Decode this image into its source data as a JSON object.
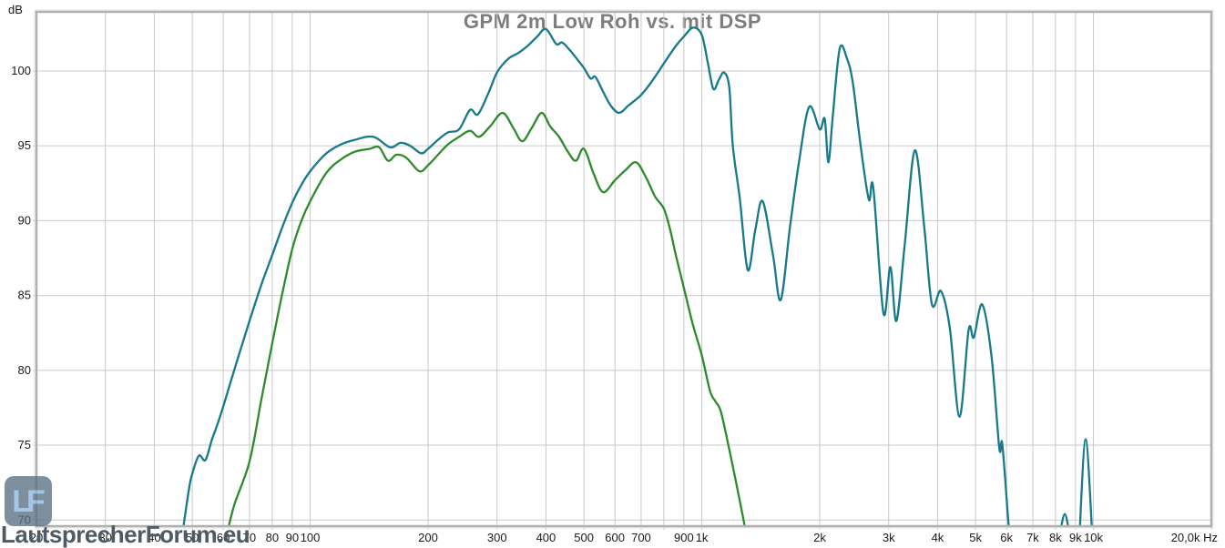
{
  "title": "GPM 2m Low Roh vs. mit DSP",
  "y_axis": {
    "unit": "dB",
    "tick_values": [
      100,
      95,
      90,
      85,
      80,
      75,
      70
    ],
    "min": 69.59,
    "max": 103.95
  },
  "x_axis": {
    "unit": "Hz",
    "scale": "log",
    "min": 20,
    "max": 20000,
    "gridline_freqs": [
      20,
      30,
      40,
      50,
      60,
      70,
      80,
      90,
      100,
      200,
      300,
      400,
      500,
      600,
      700,
      800,
      900,
      1000,
      2000,
      3000,
      4000,
      5000,
      6000,
      7000,
      8000,
      9000,
      10000,
      20000
    ],
    "ticks": [
      {
        "f": 20,
        "label": "20"
      },
      {
        "f": 30,
        "label": "30"
      },
      {
        "f": 40,
        "label": "40"
      },
      {
        "f": 50,
        "label": "50"
      },
      {
        "f": 60,
        "label": "60"
      },
      {
        "f": 70,
        "label": "70"
      },
      {
        "f": 80,
        "label": "80"
      },
      {
        "f": 90,
        "label": "90"
      },
      {
        "f": 100,
        "label": "100"
      },
      {
        "f": 200,
        "label": "200"
      },
      {
        "f": 300,
        "label": "300"
      },
      {
        "f": 400,
        "label": "400"
      },
      {
        "f": 500,
        "label": "500"
      },
      {
        "f": 600,
        "label": "600"
      },
      {
        "f": 700,
        "label": "700"
      },
      {
        "f": 900,
        "label": "900"
      },
      {
        "f": 1000,
        "label": "1k"
      },
      {
        "f": 2000,
        "label": "2k"
      },
      {
        "f": 3000,
        "label": "3k"
      },
      {
        "f": 4000,
        "label": "4k"
      },
      {
        "f": 5000,
        "label": "5k"
      },
      {
        "f": 6000,
        "label": "6k"
      },
      {
        "f": 7000,
        "label": "7k"
      },
      {
        "f": 8000,
        "label": "8k"
      },
      {
        "f": 9000,
        "label": "9k"
      },
      {
        "f": 10000,
        "label": "10k"
      },
      {
        "f": 20000,
        "label": "20,0k Hz"
      }
    ]
  },
  "watermark": {
    "text": "LautsprecherForum.eu",
    "logo_text": "LF"
  },
  "colors": {
    "dsp_curve": "#17798a",
    "raw_curve": "#2e8b2b",
    "grid": "#c9c9c9",
    "frame": "#b0b0b0",
    "title": "#7d7d7d",
    "tick_text": "#1a1a1a",
    "watermark_text": "#4f5a64",
    "logo_bg": "#5b7186",
    "logo_letters": "#8cb8e2"
  },
  "chart_data": {
    "type": "line",
    "title": "GPM 2m Low Roh vs. mit DSP",
    "x_scale": "log",
    "x_unit": "Hz",
    "y_unit": "dB",
    "xlim": [
      20,
      20000
    ],
    "ylim": [
      69.59,
      103.95
    ],
    "grid": true,
    "legend": "none",
    "series": [
      {
        "name": "mit DSP",
        "color": "#17798a",
        "segments": [
          [
            [
              47,
              68.8
            ],
            [
              49,
              72.0
            ],
            [
              50,
              73.1
            ],
            [
              52,
              74.3
            ],
            [
              54,
              74.0
            ],
            [
              56,
              75.3
            ],
            [
              58,
              76.4
            ],
            [
              60,
              77.6
            ],
            [
              65,
              80.6
            ],
            [
              70,
              83.3
            ],
            [
              75,
              85.7
            ],
            [
              80,
              87.7
            ],
            [
              85,
              89.6
            ],
            [
              90,
              91.2
            ],
            [
              95,
              92.4
            ],
            [
              100,
              93.3
            ],
            [
              110,
              94.5
            ],
            [
              120,
              95.1
            ],
            [
              130,
              95.4
            ],
            [
              145,
              95.6
            ],
            [
              160,
              94.9
            ],
            [
              170,
              95.2
            ],
            [
              180,
              95.0
            ],
            [
              192,
              94.5
            ],
            [
              200,
              94.8
            ],
            [
              212,
              95.4
            ],
            [
              225,
              95.9
            ],
            [
              240,
              96.1
            ],
            [
              256,
              97.4
            ],
            [
              268,
              97.1
            ],
            [
              285,
              98.5
            ],
            [
              300,
              99.9
            ],
            [
              320,
              100.8
            ],
            [
              340,
              101.2
            ],
            [
              360,
              101.7
            ],
            [
              380,
              102.3
            ],
            [
              400,
              102.8
            ],
            [
              425,
              101.8
            ],
            [
              440,
              101.9
            ],
            [
              460,
              101.4
            ],
            [
              480,
              100.8
            ],
            [
              500,
              100.2
            ],
            [
              520,
              99.5
            ],
            [
              535,
              99.6
            ],
            [
              560,
              98.6
            ],
            [
              585,
              97.7
            ],
            [
              615,
              97.2
            ],
            [
              650,
              97.7
            ],
            [
              700,
              98.4
            ],
            [
              750,
              99.4
            ],
            [
              800,
              100.5
            ],
            [
              860,
              101.7
            ],
            [
              900,
              102.3
            ],
            [
              950,
              102.9
            ],
            [
              1000,
              102.4
            ],
            [
              1035,
              100.6
            ],
            [
              1070,
              98.8
            ],
            [
              1105,
              99.4
            ],
            [
              1140,
              99.9
            ],
            [
              1175,
              98.9
            ],
            [
              1200,
              95.0
            ],
            [
              1250,
              91.5
            ],
            [
              1310,
              86.7
            ],
            [
              1370,
              89.4
            ],
            [
              1430,
              91.3
            ],
            [
              1520,
              87.7
            ],
            [
              1590,
              84.7
            ],
            [
              1680,
              89.6
            ],
            [
              1770,
              93.9
            ],
            [
              1880,
              97.6
            ],
            [
              2000,
              96.1
            ],
            [
              2060,
              96.8
            ],
            [
              2105,
              93.9
            ],
            [
              2160,
              97.0
            ],
            [
              2250,
              101.5
            ],
            [
              2350,
              100.8
            ],
            [
              2430,
              99.2
            ],
            [
              2550,
              94.8
            ],
            [
              2670,
              91.4
            ],
            [
              2740,
              92.2
            ],
            [
              2910,
              83.8
            ],
            [
              3030,
              86.9
            ],
            [
              3140,
              83.3
            ],
            [
              3300,
              88.5
            ],
            [
              3500,
              94.7
            ],
            [
              3700,
              89.5
            ],
            [
              3870,
              84.4
            ],
            [
              4080,
              85.3
            ],
            [
              4300,
              82.8
            ],
            [
              4550,
              76.9
            ],
            [
              4800,
              82.7
            ],
            [
              4950,
              82.2
            ],
            [
              5200,
              84.4
            ],
            [
              5500,
              80.8
            ],
            [
              5750,
              74.8
            ],
            [
              5850,
              75.1
            ],
            [
              6050,
              70.2
            ],
            [
              6130,
              68.5
            ]
          ],
          [
            [
              8200,
              69.0
            ],
            [
              8450,
              70.4
            ],
            [
              8700,
              69.0
            ]
          ],
          [
            [
              9200,
              68.6
            ],
            [
              9550,
              75.4
            ],
            [
              9950,
              68.6
            ]
          ]
        ]
      },
      {
        "name": "Low Roh",
        "color": "#2e8b2b",
        "segments": [
          [
            [
              61,
              68.8
            ],
            [
              64,
              71.0
            ],
            [
              70,
              73.9
            ],
            [
              75,
              78.0
            ],
            [
              80,
              81.8
            ],
            [
              85,
              85.2
            ],
            [
              90,
              88.1
            ],
            [
              95,
              90.0
            ],
            [
              100,
              91.3
            ],
            [
              110,
              93.2
            ],
            [
              120,
              94.1
            ],
            [
              130,
              94.6
            ],
            [
              142,
              94.8
            ],
            [
              150,
              94.9
            ],
            [
              158,
              94.0
            ],
            [
              166,
              94.4
            ],
            [
              176,
              94.2
            ],
            [
              190,
              93.3
            ],
            [
              200,
              93.7
            ],
            [
              212,
              94.4
            ],
            [
              225,
              95.1
            ],
            [
              240,
              95.6
            ],
            [
              256,
              96.0
            ],
            [
              270,
              95.6
            ],
            [
              288,
              96.3
            ],
            [
              310,
              97.2
            ],
            [
              330,
              96.2
            ],
            [
              348,
              95.3
            ],
            [
              368,
              96.2
            ],
            [
              390,
              97.2
            ],
            [
              410,
              96.3
            ],
            [
              432,
              95.6
            ],
            [
              455,
              94.6
            ],
            [
              477,
              94.0
            ],
            [
              500,
              94.8
            ],
            [
              530,
              93.1
            ],
            [
              560,
              91.9
            ],
            [
              600,
              92.7
            ],
            [
              640,
              93.4
            ],
            [
              680,
              93.9
            ],
            [
              720,
              92.9
            ],
            [
              760,
              91.6
            ],
            [
              800,
              90.8
            ],
            [
              830,
              89.4
            ],
            [
              860,
              87.6
            ],
            [
              900,
              85.5
            ],
            [
              950,
              83.0
            ],
            [
              1000,
              81.0
            ],
            [
              1050,
              78.6
            ],
            [
              1085,
              77.9
            ],
            [
              1120,
              77.2
            ],
            [
              1180,
              74.5
            ],
            [
              1250,
              71.3
            ],
            [
              1300,
              69.0
            ]
          ]
        ]
      }
    ]
  }
}
